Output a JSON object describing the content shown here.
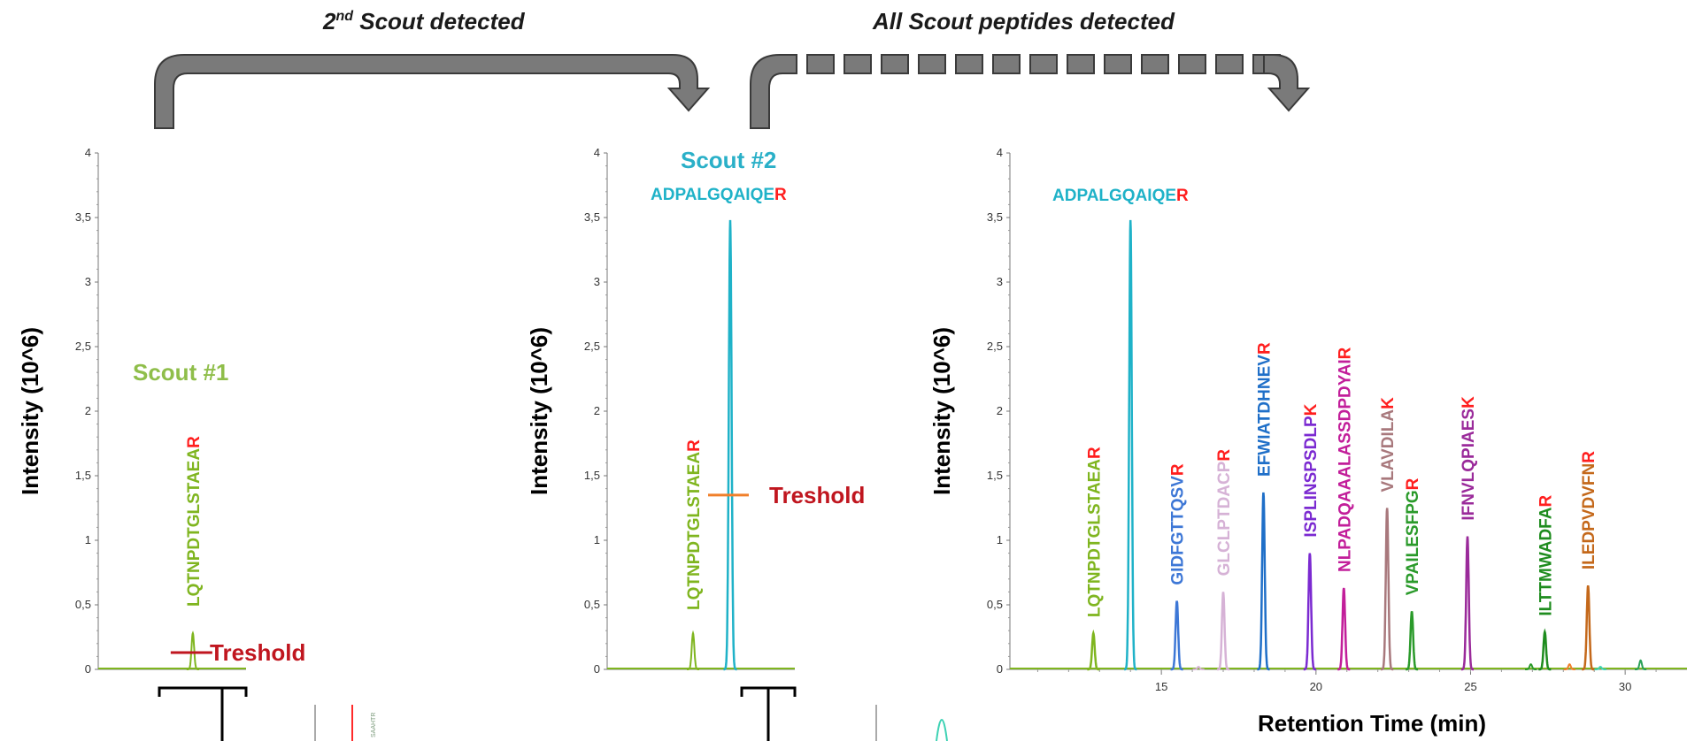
{
  "headers": {
    "arrow1_label": "2nd Scout detected",
    "arrow1_base": "2",
    "arrow1_sup": "nd",
    "arrow1_rest": " Scout detected",
    "arrow2_label": "All Scout peptides detected"
  },
  "colors": {
    "arrow_fill": "#7a7a7a",
    "arrow_stroke": "#3a3a3a",
    "terminal_residue": "#ff1e1e",
    "threshold_text": "#c0161f",
    "threshold_line_panel1": "#c0161f",
    "threshold_line_panel2": "#f07f2a"
  },
  "chart_data": [
    {
      "type": "line",
      "ylabel": "Intensity (10^6)",
      "ylim": [
        0,
        4
      ],
      "yticks": [
        "0",
        "0,5",
        "1",
        "1,5",
        "2",
        "2,5",
        "3",
        "3,5",
        "4"
      ],
      "annotation": "Scout #1",
      "annotation_color": "#8fbe4a",
      "threshold_label": "Treshold",
      "threshold_value": 0.13,
      "series": [
        {
          "name": "LQTNPDTGLSTAEAR",
          "color": "#7fb51f",
          "peak_x": 0.58,
          "peak_height": 0.28
        }
      ]
    },
    {
      "type": "line",
      "ylabel": "Intensity (10^6)",
      "ylim": [
        0,
        4
      ],
      "yticks": [
        "0",
        "0,5",
        "1",
        "1,5",
        "2",
        "2,5",
        "3",
        "3,5",
        "4"
      ],
      "annotation": "Scout #2",
      "annotation_color": "#2ab0c8",
      "threshold_label": "Treshold",
      "threshold_value": 1.35,
      "series": [
        {
          "name": "LQTNPDTGLSTAEAR",
          "color": "#7fb51f",
          "peak_x": 0.47,
          "peak_height": 0.28
        },
        {
          "name": "ADPALGQAIQER",
          "color": "#1fb2c8",
          "peak_x": 0.66,
          "peak_height": 3.48
        }
      ]
    },
    {
      "type": "line",
      "xlabel": "Retention Time (min)",
      "ylabel": "Intensity (10^6)",
      "ylim": [
        0,
        4
      ],
      "xlim": [
        10.1,
        32.0
      ],
      "xticks": [
        "15",
        "20",
        "25",
        "30"
      ],
      "yticks": [
        "0",
        "0,5",
        "1",
        "1,5",
        "2",
        "2,5",
        "3",
        "3,5",
        "4"
      ],
      "series": [
        {
          "name": "LQTNPDTGLSTAEAR",
          "color": "#7fb51f",
          "rt": 12.8,
          "height": 0.28
        },
        {
          "name": "ADPALGQAIQER",
          "color": "#1fb2c8",
          "rt": 14.0,
          "height": 3.48
        },
        {
          "name": "GIDFGTTQSVR",
          "color": "#3d77d6",
          "rt": 15.5,
          "height": 0.53
        },
        {
          "name": "GLCLPTDACPR",
          "color": "#d6b2d6",
          "rt": 17.0,
          "height": 0.6
        },
        {
          "name": "EFWIATDHNEVR",
          "color": "#1f6fc8",
          "rt": 18.3,
          "height": 1.37
        },
        {
          "name": "ISPLINSPSDLPK",
          "color": "#7b2ad1",
          "rt": 19.8,
          "height": 0.9
        },
        {
          "name": "NLPADQAAALASSDPDYAIR",
          "color": "#c21e9a",
          "rt": 20.9,
          "height": 0.63
        },
        {
          "name": "VLAVDILAK",
          "color": "#a8787c",
          "rt": 22.3,
          "height": 1.25
        },
        {
          "name": "VPAILESFPGR",
          "color": "#2a9a2a",
          "rt": 23.1,
          "height": 0.45
        },
        {
          "name": "IFNVLQPIAESK",
          "color": "#9a2a9a",
          "rt": 24.9,
          "height": 1.03
        },
        {
          "name": "ILTTMWADFAR",
          "color": "#1e8c1e",
          "rt": 27.4,
          "height": 0.29
        },
        {
          "name": "ILEDPVDVFNR",
          "color": "#c4681a",
          "rt": 28.8,
          "height": 0.65
        }
      ]
    }
  ]
}
